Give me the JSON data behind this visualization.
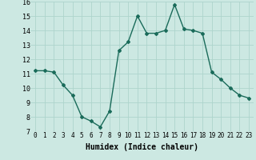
{
  "x": [
    0,
    1,
    2,
    3,
    4,
    5,
    6,
    7,
    8,
    9,
    10,
    11,
    12,
    13,
    14,
    15,
    16,
    17,
    18,
    19,
    20,
    21,
    22,
    23
  ],
  "y": [
    11.2,
    11.2,
    11.1,
    10.2,
    9.5,
    8.0,
    7.7,
    7.3,
    8.4,
    12.6,
    13.2,
    15.0,
    13.8,
    13.8,
    14.0,
    15.8,
    14.1,
    14.0,
    13.8,
    11.1,
    10.6,
    10.0,
    9.5,
    9.3
  ],
  "line_color": "#1a6b5a",
  "marker": "D",
  "markersize": 2.0,
  "linewidth": 1.0,
  "xlabel": "Humidex (Indice chaleur)",
  "xlabel_fontsize": 7,
  "xlabel_fontweight": "bold",
  "xlim": [
    -0.5,
    23.5
  ],
  "ylim": [
    7,
    16
  ],
  "yticks": [
    7,
    8,
    9,
    10,
    11,
    12,
    13,
    14,
    15,
    16
  ],
  "xticks": [
    0,
    1,
    2,
    3,
    4,
    5,
    6,
    7,
    8,
    9,
    10,
    11,
    12,
    13,
    14,
    15,
    16,
    17,
    18,
    19,
    20,
    21,
    22,
    23
  ],
  "grid_color": "#aed4cc",
  "background_color": "#cce8e2",
  "tick_fontsize": 5.5,
  "y_tick_fontsize": 6.0
}
